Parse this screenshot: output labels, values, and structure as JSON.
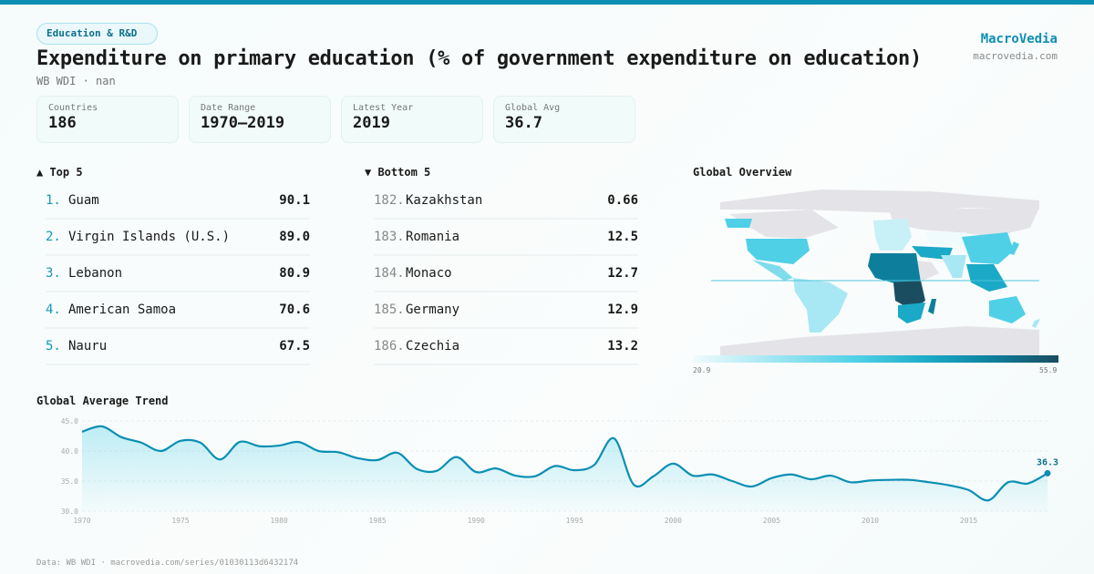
{
  "header": {
    "category": "Education & R&D",
    "title": "Expenditure on primary education (% of government expenditure on education)",
    "subtitle": "WB WDI · nan",
    "brand": "MacroVedia",
    "brand_url": "macrovedia.com"
  },
  "stats": [
    {
      "label": "Countries",
      "value": "186"
    },
    {
      "label": "Date Range",
      "value": "1970–2019"
    },
    {
      "label": "Latest Year",
      "value": "2019"
    },
    {
      "label": "Global Avg",
      "value": "36.7"
    }
  ],
  "top": {
    "title": "▲ Top 5",
    "items": [
      {
        "rank": "1.",
        "name": "Guam",
        "value": "90.1"
      },
      {
        "rank": "2.",
        "name": "Virgin Islands (U.S.)",
        "value": "89.0"
      },
      {
        "rank": "3.",
        "name": "Lebanon",
        "value": "80.9"
      },
      {
        "rank": "4.",
        "name": "American Samoa",
        "value": "70.6"
      },
      {
        "rank": "5.",
        "name": "Nauru",
        "value": "67.5"
      }
    ]
  },
  "bottom": {
    "title": "▼ Bottom 5",
    "items": [
      {
        "rank": "182.",
        "name": "Kazakhstan",
        "value": "0.66"
      },
      {
        "rank": "183.",
        "name": "Romania",
        "value": "12.5"
      },
      {
        "rank": "184.",
        "name": "Monaco",
        "value": "12.7"
      },
      {
        "rank": "185.",
        "name": "Germany",
        "value": "12.9"
      },
      {
        "rank": "186.",
        "name": "Czechia",
        "value": "13.2"
      }
    ]
  },
  "map": {
    "title": "Global Overview",
    "legend_min": "20.9",
    "legend_max": "55.9",
    "colors": {
      "nodata": "#e4e4e8",
      "low": "#f0fbfd",
      "high": "#1a4d60"
    }
  },
  "chart_data": {
    "type": "area",
    "title": "Global Average Trend",
    "xlabel": "",
    "ylabel": "",
    "ylim": [
      30,
      45
    ],
    "yticks": [
      "45.0",
      "40.0",
      "35.0",
      "30.0"
    ],
    "xticks": [
      "1970",
      "1975",
      "1980",
      "1985",
      "1990",
      "1995",
      "2000",
      "2005",
      "2010",
      "2015"
    ],
    "grid": true,
    "color": "#0b8fb3",
    "last_label": "36.3",
    "x": [
      1970,
      1971,
      1972,
      1973,
      1974,
      1975,
      1976,
      1977,
      1978,
      1979,
      1980,
      1981,
      1982,
      1983,
      1984,
      1985,
      1986,
      1987,
      1988,
      1989,
      1990,
      1991,
      1992,
      1993,
      1994,
      1995,
      1996,
      1997,
      1998,
      1999,
      2000,
      2001,
      2002,
      2003,
      2004,
      2005,
      2006,
      2007,
      2008,
      2009,
      2010,
      2011,
      2012,
      2013,
      2014,
      2015,
      2016,
      2017,
      2018,
      2019
    ],
    "values": [
      43.2,
      44.1,
      42.3,
      41.4,
      40.0,
      41.7,
      41.4,
      38.6,
      41.5,
      40.8,
      40.9,
      41.5,
      40.0,
      39.8,
      38.8,
      38.5,
      39.7,
      37.0,
      36.7,
      39.0,
      36.5,
      37.1,
      35.9,
      35.8,
      37.5,
      36.8,
      37.7,
      42.1,
      34.4,
      35.8,
      37.9,
      35.9,
      36.1,
      35.0,
      34.1,
      35.5,
      36.1,
      35.3,
      35.9,
      34.8,
      35.1,
      35.2,
      35.2,
      34.8,
      34.3,
      33.5,
      31.8,
      34.8,
      34.6,
      36.3
    ]
  },
  "footer": "Data: WB WDI · macrovedia.com/series/01030113d6432174"
}
